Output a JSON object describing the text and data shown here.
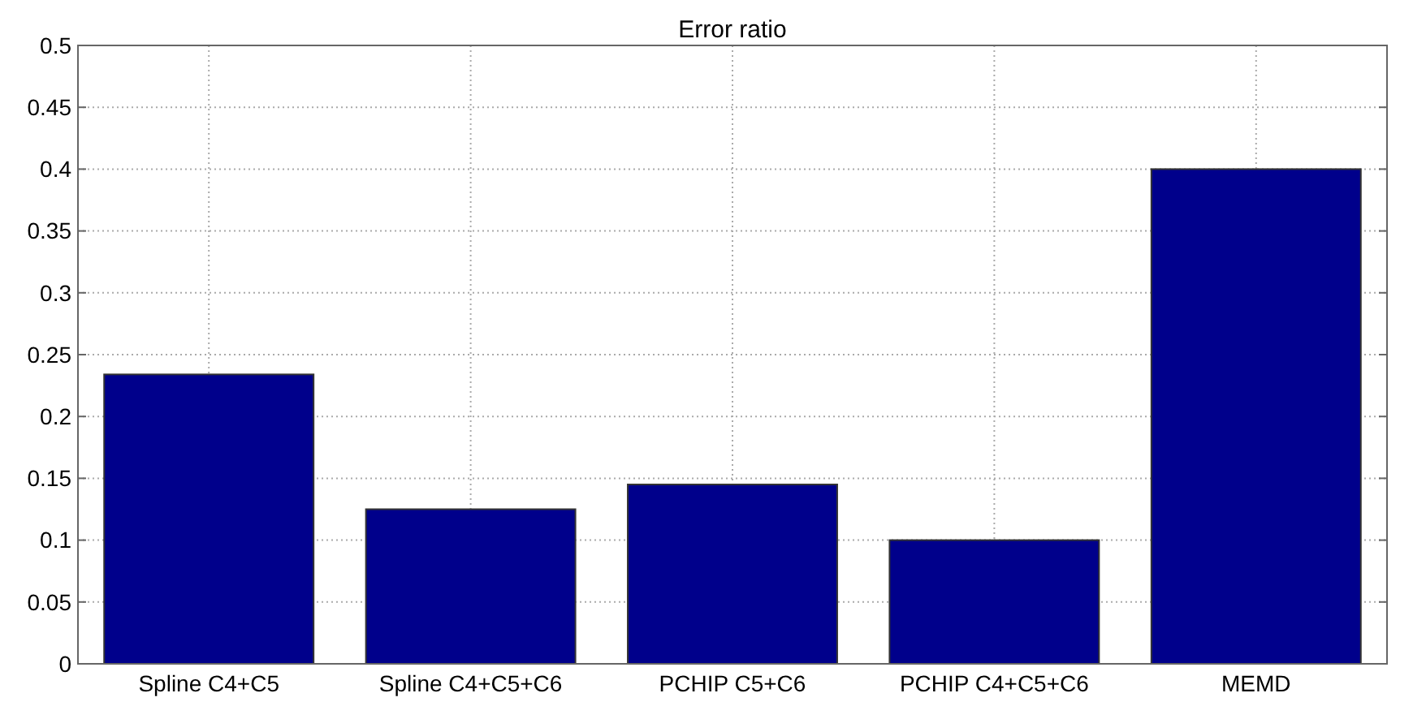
{
  "chart_data": {
    "type": "bar",
    "title": "Error ratio",
    "categories": [
      "Spline C4+C5",
      "Spline C4+C5+C6",
      "PCHIP C5+C6",
      "PCHIP C4+C5+C6",
      "MEMD"
    ],
    "values": [
      0.234,
      0.125,
      0.145,
      0.1,
      0.4
    ],
    "color": "#00008b",
    "ylim": [
      0,
      0.5
    ],
    "yticks": [
      0,
      0.05,
      0.1,
      0.15,
      0.2,
      0.25,
      0.3,
      0.35,
      0.4,
      0.45,
      0.5
    ],
    "grid": true
  }
}
